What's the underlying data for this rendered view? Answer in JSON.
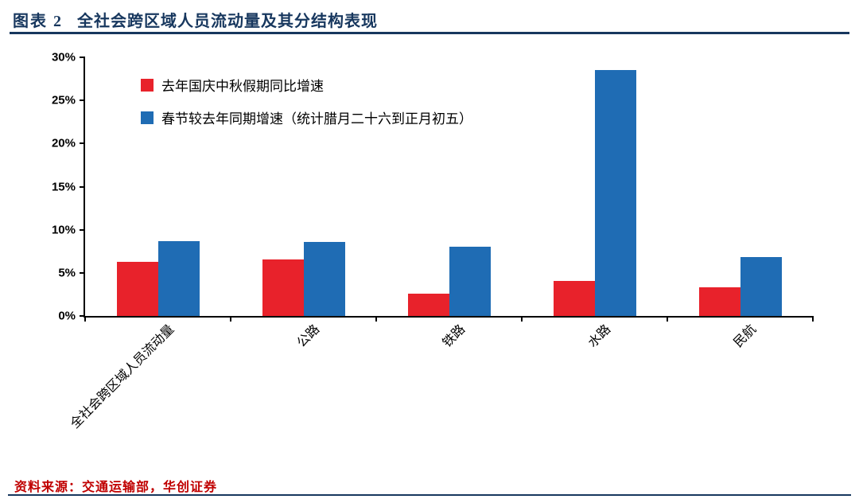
{
  "header": {
    "figure_label": "图表 2",
    "title": "全社会跨区域人员流动量及其分结构表现"
  },
  "footer": {
    "source": "资料来源：交通运输部，华创证券"
  },
  "colors": {
    "navy": "#17375E",
    "red": "#E8222B",
    "blue": "#1F6CB4",
    "source_red": "#C00000"
  },
  "chart_data": {
    "type": "bar",
    "categories": [
      "全社会跨区域人员流动量",
      "公路",
      "铁路",
      "水路",
      "民航"
    ],
    "series": [
      {
        "name": "去年国庆中秋假期同比增速",
        "color_key": "red",
        "values": [
          6.3,
          6.6,
          2.6,
          4.1,
          3.3
        ]
      },
      {
        "name": "春节较去年同期增速（统计腊月二十六到正月初五）",
        "color_key": "blue",
        "values": [
          8.7,
          8.6,
          8.0,
          28.5,
          6.8
        ]
      }
    ],
    "title": "",
    "xlabel": "",
    "ylabel": "",
    "ylim": [
      0,
      30
    ],
    "ytick_step": 5,
    "ytick_labels": [
      "0%",
      "5%",
      "10%",
      "15%",
      "20%",
      "25%",
      "30%"
    ],
    "legend_position": "top-left",
    "grid": false
  }
}
